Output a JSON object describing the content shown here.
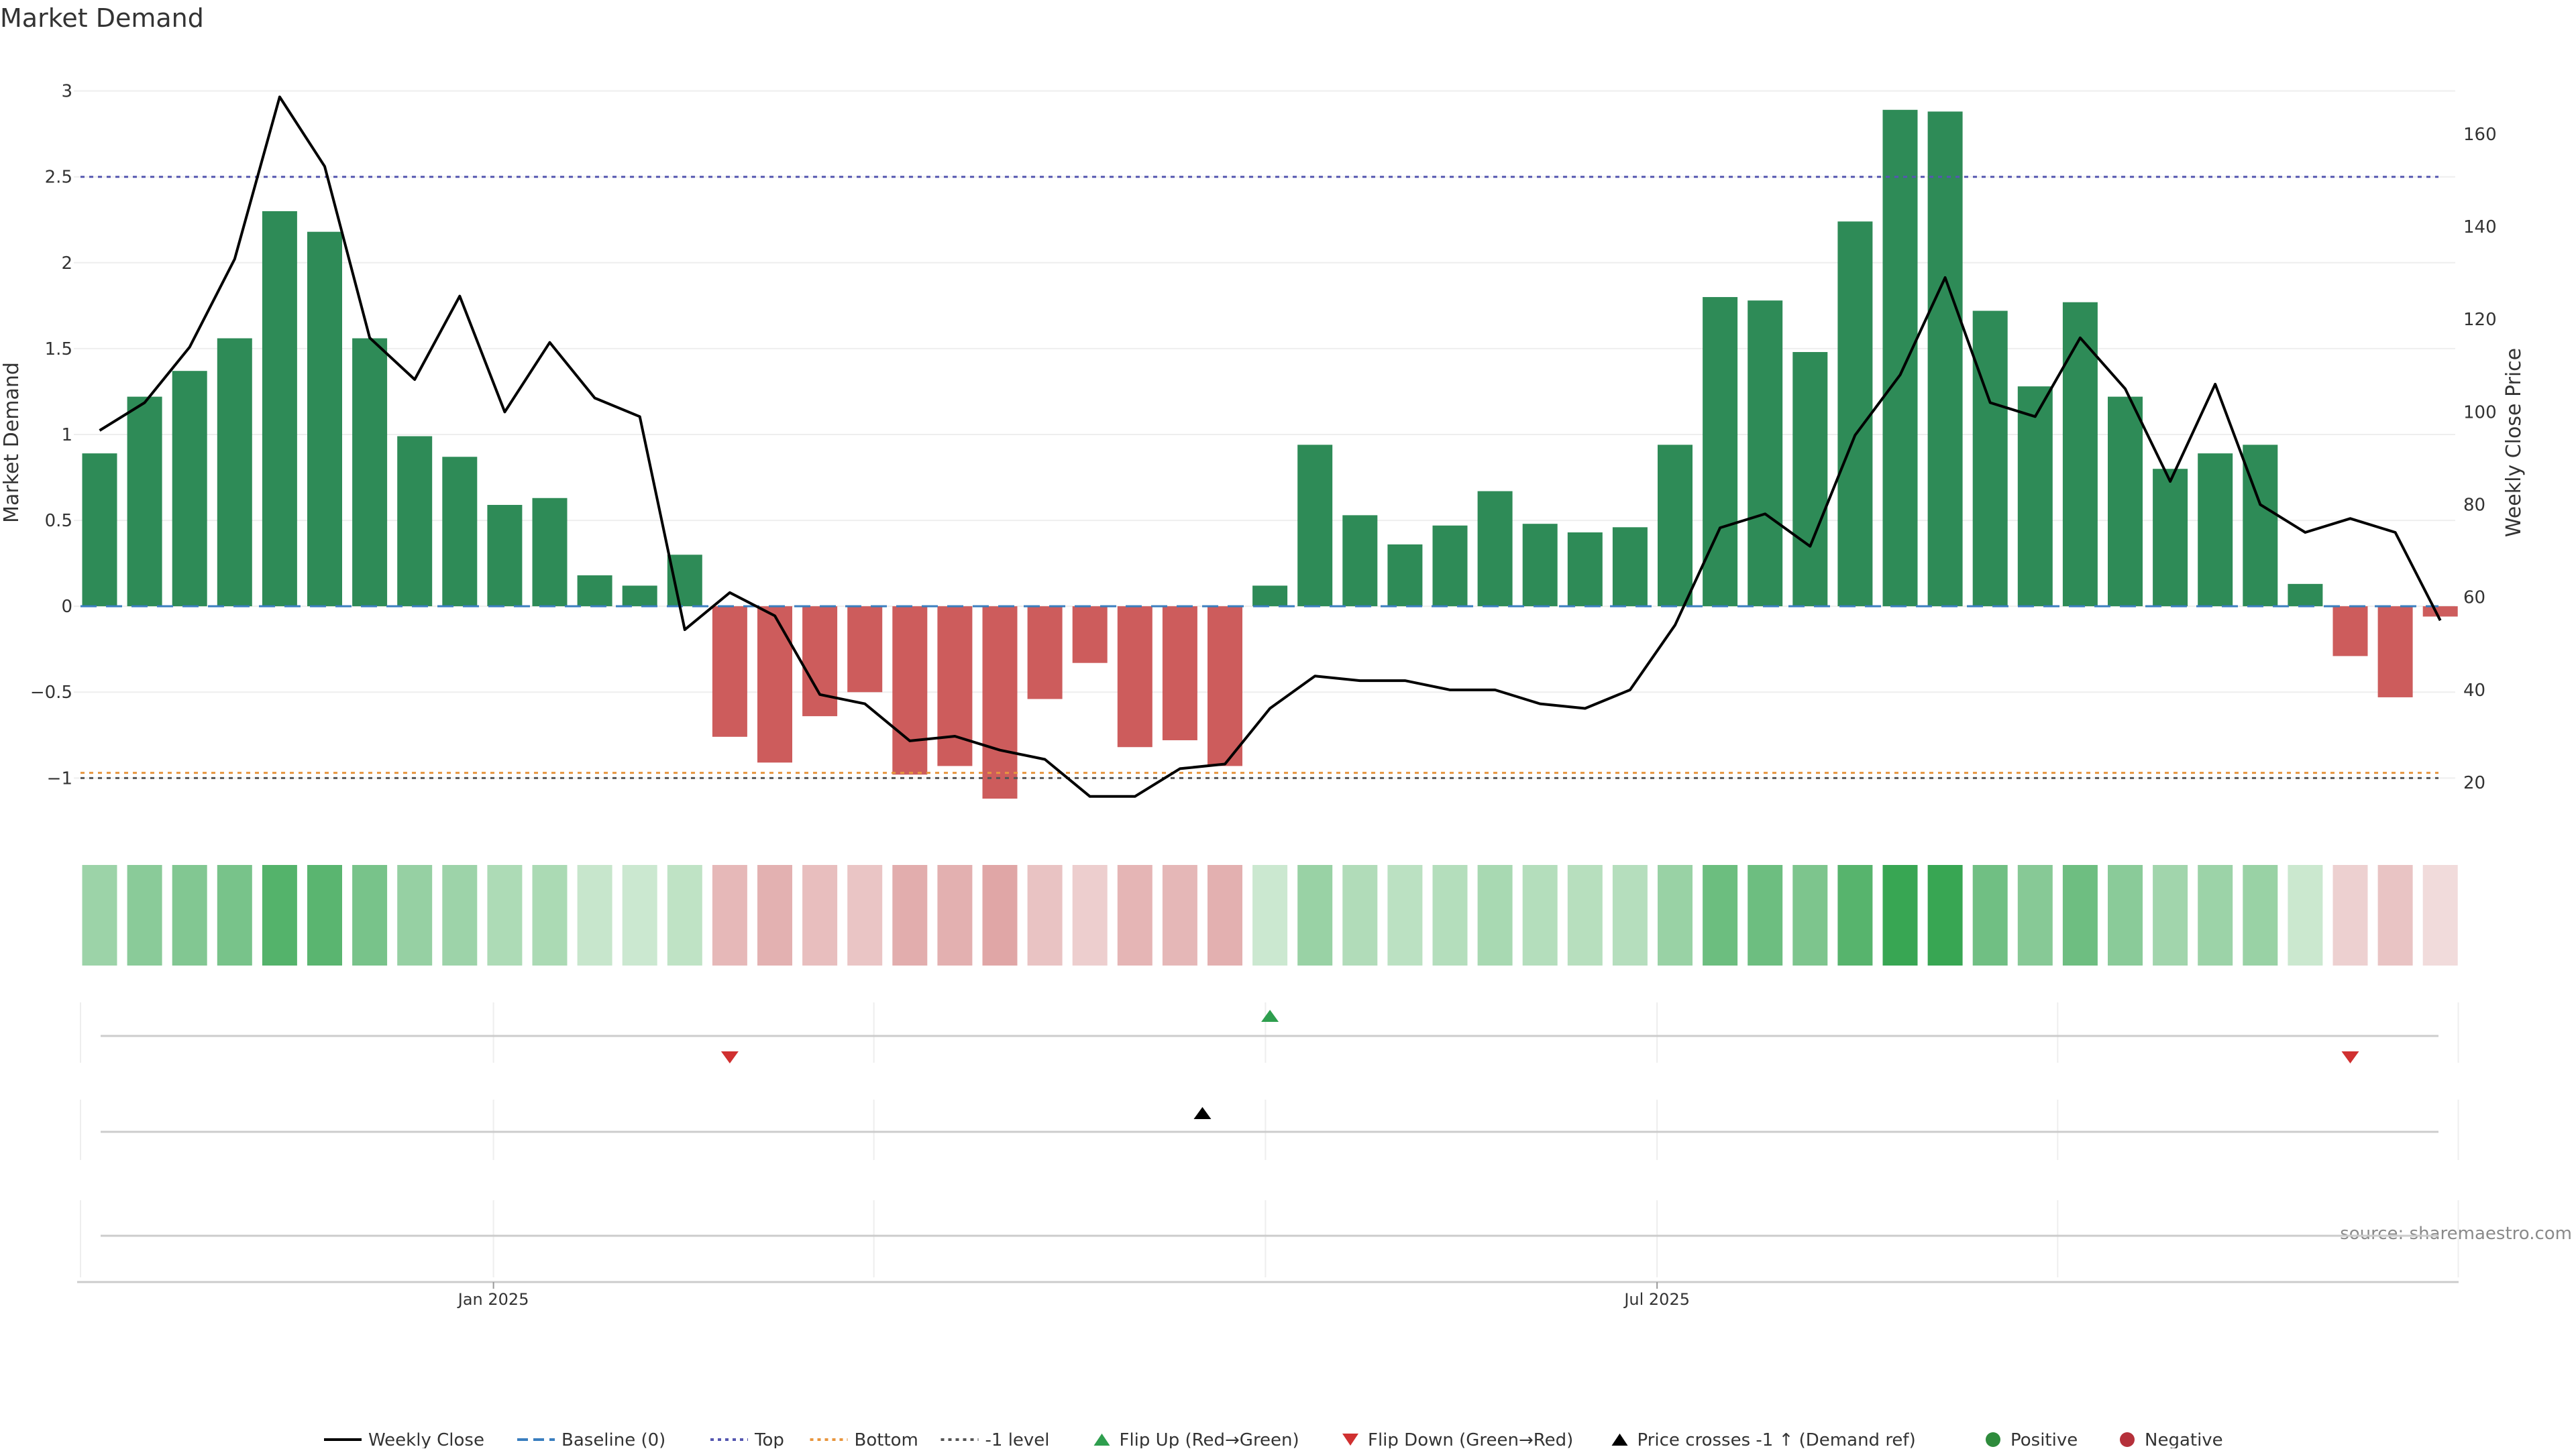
{
  "chart_data": {
    "type": "bar",
    "title": "Market Demand",
    "ylabel": "Market Demand",
    "y2label": "Weekly Close Price",
    "source": "source: sharemaestro.com",
    "ylim": [
      -1.35,
      3.1
    ],
    "y2lim": [
      8,
      173
    ],
    "yticks": [
      {
        "v": 3,
        "label": "3"
      },
      {
        "v": 2.5,
        "label": "2.5"
      },
      {
        "v": 2,
        "label": "2"
      },
      {
        "v": 1.5,
        "label": "1.5"
      },
      {
        "v": 1,
        "label": "1"
      },
      {
        "v": 0.5,
        "label": "0.5"
      },
      {
        "v": 0,
        "label": "0"
      },
      {
        "v": -0.5,
        "label": "−0.5"
      },
      {
        "v": -1,
        "label": "−1"
      }
    ],
    "y2ticks": [
      {
        "v": 160,
        "label": "160"
      },
      {
        "v": 140,
        "label": "140"
      },
      {
        "v": 120,
        "label": "120"
      },
      {
        "v": 100,
        "label": "100"
      },
      {
        "v": 80,
        "label": "80"
      },
      {
        "v": 60,
        "label": "60"
      },
      {
        "v": 40,
        "label": "40"
      },
      {
        "v": 20,
        "label": "20"
      }
    ],
    "xticks": [
      {
        "week": 8.75,
        "label": "Jan 2025"
      },
      {
        "week": 34.6,
        "label": "Jul 2025"
      }
    ],
    "minor_vlines": [
      8.75,
      17.2,
      25.9,
      34.6,
      43.5,
      52.4
    ],
    "demand": [
      0.89,
      1.22,
      1.37,
      1.56,
      2.3,
      2.18,
      1.56,
      0.99,
      0.87,
      0.59,
      0.63,
      0.18,
      0.12,
      0.3,
      -0.76,
      -0.91,
      -0.64,
      -0.5,
      -0.98,
      -0.93,
      -1.12,
      -0.54,
      -0.33,
      -0.82,
      -0.78,
      -0.93,
      0.12,
      0.94,
      0.53,
      0.36,
      0.47,
      0.67,
      0.48,
      0.43,
      0.46,
      0.94,
      1.8,
      1.78,
      1.48,
      2.24,
      2.89,
      2.88,
      1.72,
      1.28,
      1.77,
      1.22,
      0.8,
      0.89,
      0.94,
      0.13,
      -0.29,
      -0.53,
      -0.06
    ],
    "close": [
      96,
      102,
      114,
      133,
      168,
      153,
      116,
      107,
      125,
      100,
      115,
      103,
      99,
      53,
      61,
      56,
      39,
      37,
      29,
      30,
      27,
      25,
      17,
      17,
      23,
      24,
      36,
      43,
      42,
      42,
      40,
      40,
      37,
      36,
      40,
      54,
      75,
      78,
      71,
      95,
      108,
      129,
      102,
      99,
      116,
      105,
      85,
      106,
      80,
      74,
      77,
      74,
      55
    ],
    "reference_lines": [
      {
        "name": "Baseline (0)",
        "y": 0,
        "color": "#3a7ebf",
        "dash": "24,14",
        "width": 3
      },
      {
        "name": "Top",
        "y": 2.5,
        "color": "#5557b0",
        "dash": "6,7",
        "width": 3
      },
      {
        "name": "Bottom",
        "y": -0.97,
        "color": "#e8963e",
        "dash": "6,7",
        "width": 3
      },
      {
        "name": "-1 level",
        "y": -1.0,
        "color": "#555555",
        "dash": "6,7",
        "width": 3
      }
    ],
    "colors": {
      "positive": "#2e8b57",
      "negative": "#cd5c5c",
      "price_line": "#000000",
      "flip_up": "#2e9e4e",
      "flip_down": "#d03030",
      "cross": "#000000",
      "legend_positive": "#2e8b3c",
      "legend_negative": "#b5303a"
    },
    "flip_up_weeks": [
      26
    ],
    "flip_down_weeks": [
      14,
      50
    ],
    "cross_weeks": [
      24.5
    ],
    "legend": [
      {
        "label": "Weekly Close",
        "kind": "line",
        "color": "#000000",
        "dash": ""
      },
      {
        "label": "Baseline (0)",
        "kind": "line",
        "color": "#3a7ebf",
        "dash": "16,8"
      },
      {
        "label": "Top",
        "kind": "line",
        "color": "#5557b0",
        "dash": "5,6"
      },
      {
        "label": "Bottom",
        "kind": "line",
        "color": "#e8963e",
        "dash": "5,6"
      },
      {
        "label": "-1 level",
        "kind": "line",
        "color": "#555555",
        "dash": "5,6"
      },
      {
        "label": "Flip Up (Red→Green)",
        "kind": "tri-up",
        "color": "#2e9e4e"
      },
      {
        "label": "Flip Down (Green→Red)",
        "kind": "tri-down",
        "color": "#d03030"
      },
      {
        "label": "Price crosses -1 ↑ (Demand ref)",
        "kind": "tri-up",
        "color": "#000000"
      },
      {
        "label": "Positive",
        "kind": "dot",
        "color": "#2e8b3c"
      },
      {
        "label": "Negative",
        "kind": "dot",
        "color": "#b5303a"
      }
    ]
  }
}
